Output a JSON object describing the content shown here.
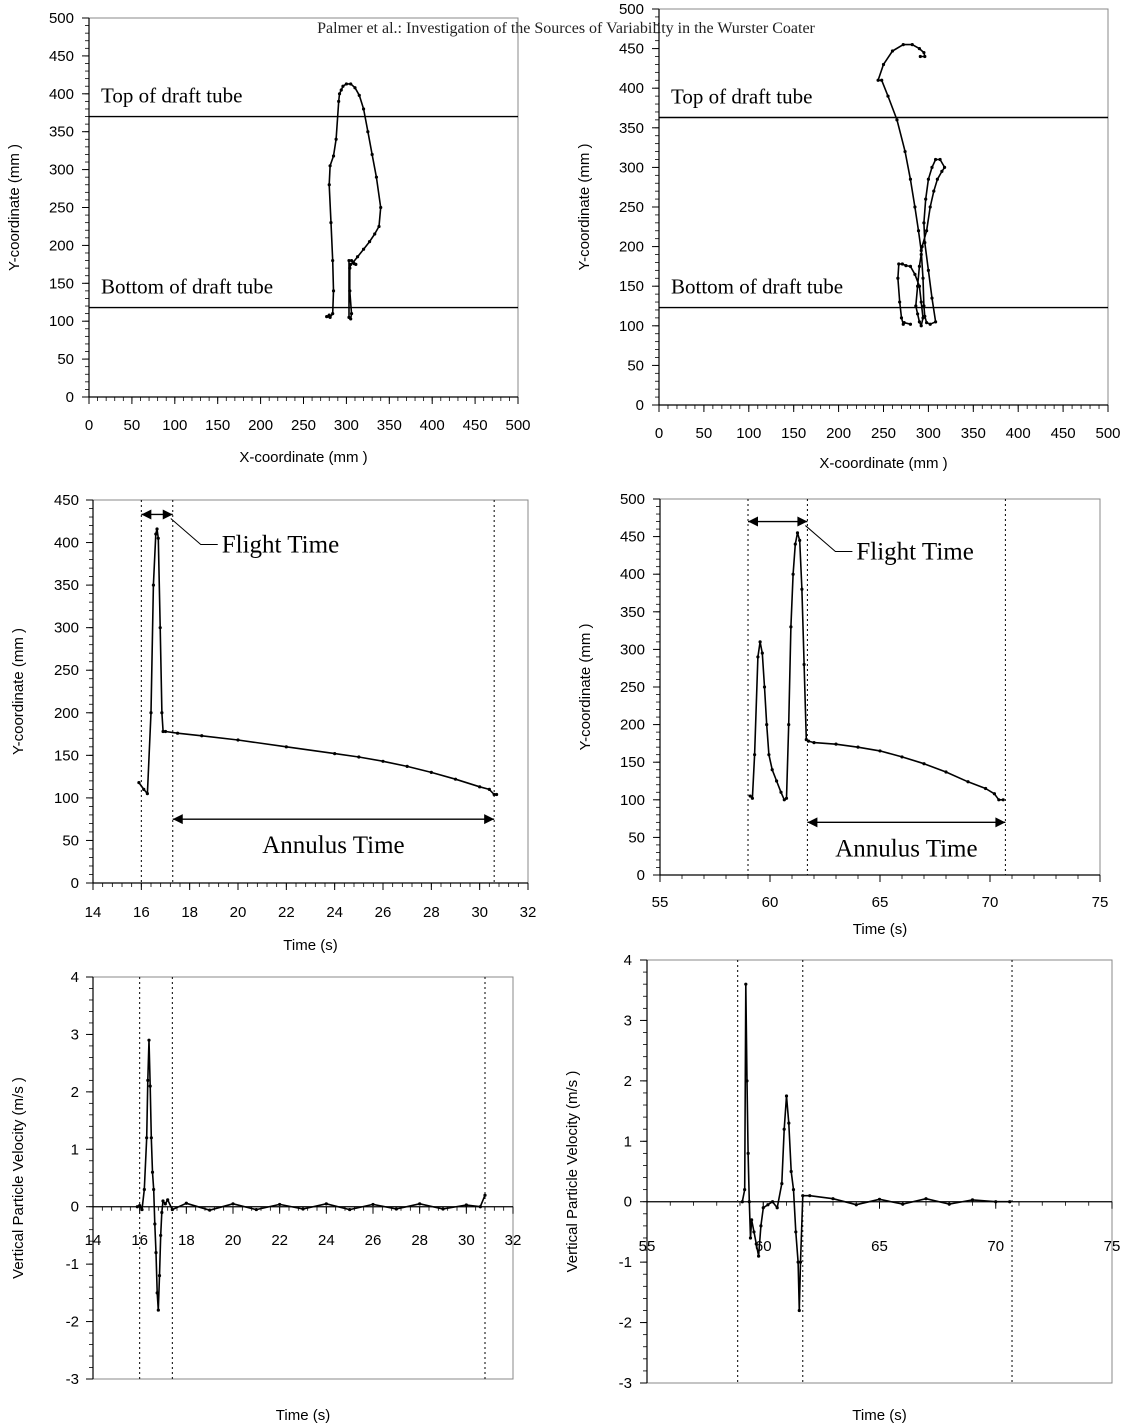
{
  "header": {
    "text": "Palmer et al.: Investigation of the Sources of Variability in the Wurster Coater"
  },
  "chart_data": [
    {
      "id": "trajectory-left",
      "type": "line",
      "xlabel": "X-coordinate (mm )",
      "ylabel": "Y-coordinate (mm )",
      "xlim": [
        0,
        500
      ],
      "ylim": [
        0,
        500
      ],
      "xticks": [
        0,
        50,
        100,
        150,
        200,
        250,
        300,
        350,
        400,
        450,
        500
      ],
      "yticks": [
        0,
        50,
        100,
        150,
        200,
        250,
        300,
        350,
        400,
        450,
        500
      ],
      "grid": false,
      "reference_lines": [
        {
          "label": "Top of draft tube",
          "y": 370
        },
        {
          "label": "Bottom of draft tube",
          "y": 118
        }
      ],
      "series": [
        {
          "x": [
            280,
            277,
            281,
            284,
            285,
            284,
            282,
            280,
            281,
            285,
            288,
            291,
            292,
            294,
            296,
            300,
            305,
            310,
            315,
            320,
            325,
            330,
            335,
            340,
            338,
            333,
            327,
            320,
            313,
            308,
            305,
            304,
            304,
            306,
            305,
            303,
            303,
            306,
            309,
            311
          ],
          "y": [
            108,
            106,
            105,
            110,
            140,
            180,
            230,
            280,
            305,
            318,
            340,
            390,
            400,
            405,
            410,
            413,
            413,
            408,
            398,
            380,
            350,
            320,
            290,
            250,
            225,
            215,
            205,
            195,
            185,
            178,
            175,
            170,
            140,
            110,
            103,
            105,
            180,
            180,
            176,
            175
          ]
        }
      ]
    },
    {
      "id": "trajectory-right",
      "type": "line",
      "xlabel": "X-coordinate (mm )",
      "ylabel": "Y-coordinate (mm )",
      "xlim": [
        0,
        500
      ],
      "ylim": [
        0,
        500
      ],
      "xticks": [
        0,
        50,
        100,
        150,
        200,
        250,
        300,
        350,
        400,
        450,
        500
      ],
      "yticks": [
        0,
        50,
        100,
        150,
        200,
        250,
        300,
        350,
        400,
        450,
        500
      ],
      "grid": false,
      "reference_lines": [
        {
          "label": "Top of draft tube",
          "y": 363
        },
        {
          "label": "Bottom of draft tube",
          "y": 123
        }
      ],
      "series": [
        {
          "x": [
            280,
            273,
            272,
            270,
            268,
            266,
            267,
            271,
            275,
            280,
            285,
            290,
            292,
            294,
            292,
            290,
            288,
            286,
            288,
            290,
            292,
            293,
            298,
            302,
            306,
            310,
            315,
            318,
            313,
            308,
            304,
            300,
            297,
            295,
            296,
            300,
            304,
            308,
            302,
            298,
            296,
            295,
            294,
            292,
            289,
            285,
            280,
            274,
            265,
            255,
            248,
            244,
            250,
            260,
            272,
            282,
            290,
            295,
            296,
            291
          ],
          "y": [
            102,
            104,
            102,
            110,
            130,
            160,
            178,
            178,
            176,
            175,
            165,
            150,
            130,
            110,
            100,
            105,
            115,
            125,
            150,
            175,
            190,
            200,
            220,
            250,
            270,
            285,
            295,
            300,
            310,
            310,
            300,
            285,
            260,
            230,
            205,
            170,
            135,
            105,
            102,
            104,
            112,
            125,
            160,
            195,
            220,
            250,
            285,
            320,
            360,
            390,
            410,
            410,
            430,
            447,
            455,
            455,
            450,
            445,
            440,
            440
          ]
        }
      ]
    },
    {
      "id": "ytime-left",
      "type": "line",
      "xlabel": "Time (s)",
      "ylabel": "Y-coordinate (mm )",
      "xlim": [
        14,
        32
      ],
      "ylim": [
        0,
        450
      ],
      "xticks": [
        14,
        16,
        18,
        20,
        22,
        24,
        26,
        28,
        30,
        32
      ],
      "yticks": [
        0,
        50,
        100,
        150,
        200,
        250,
        300,
        350,
        400,
        450
      ],
      "grid": false,
      "vlines": [
        16.0,
        17.3,
        30.6
      ],
      "annotations": [
        {
          "text": "Flight Time",
          "x_from": 16.0,
          "x_to": 17.3,
          "y": 433
        },
        {
          "text": "Annulus Time",
          "x_from": 17.3,
          "x_to": 30.6,
          "y": 75
        }
      ],
      "series": [
        {
          "x": [
            15.9,
            16.1,
            16.25,
            16.4,
            16.5,
            16.6,
            16.65,
            16.7,
            16.78,
            16.85,
            16.9,
            17.0,
            17.5,
            18.5,
            20,
            22,
            24,
            25,
            26,
            27,
            28,
            29,
            30,
            30.4,
            30.6,
            30.7
          ],
          "y": [
            118,
            110,
            105,
            200,
            350,
            410,
            416,
            405,
            300,
            200,
            178,
            178,
            176,
            173,
            168,
            160,
            152,
            148,
            143,
            137,
            130,
            122,
            113,
            110,
            104,
            104
          ]
        }
      ]
    },
    {
      "id": "ytime-right",
      "type": "line",
      "xlabel": "Time (s)",
      "ylabel": "Y-coordinate (mm )",
      "xlim": [
        55,
        75
      ],
      "ylim": [
        0,
        500
      ],
      "xticks": [
        55,
        60,
        65,
        70,
        75
      ],
      "yticks": [
        0,
        50,
        100,
        150,
        200,
        250,
        300,
        350,
        400,
        450,
        500
      ],
      "grid": false,
      "vlines": [
        59.0,
        61.7,
        70.7
      ],
      "annotations": [
        {
          "text": "Flight Time",
          "x_from": 59.0,
          "x_to": 61.7,
          "y": 470
        },
        {
          "text": "Annulus Time",
          "x_from": 61.7,
          "x_to": 70.7,
          "y": 70
        }
      ],
      "series": [
        {
          "x": [
            59.1,
            59.2,
            59.3,
            59.45,
            59.55,
            59.65,
            59.75,
            59.85,
            59.95,
            60.1,
            60.3,
            60.5,
            60.65,
            60.75,
            60.85,
            60.95,
            61.05,
            61.15,
            61.25,
            61.35,
            61.45,
            61.55,
            61.65,
            61.75,
            62,
            63,
            64,
            65,
            66,
            67,
            68,
            69,
            69.8,
            70.2,
            70.4,
            70.6
          ],
          "y": [
            105,
            102,
            160,
            290,
            310,
            295,
            250,
            200,
            160,
            140,
            125,
            110,
            100,
            102,
            200,
            330,
            400,
            440,
            455,
            445,
            380,
            280,
            180,
            178,
            176,
            174,
            170,
            165,
            157,
            148,
            137,
            124,
            115,
            108,
            100,
            100
          ]
        }
      ]
    },
    {
      "id": "velocity-left",
      "type": "line",
      "xlabel": "Time (s)",
      "ylabel": "Vertical Particle Velocity (m/s )",
      "xlim": [
        14,
        32
      ],
      "ylim": [
        -3,
        4
      ],
      "xticks": [
        14,
        16,
        18,
        20,
        22,
        24,
        26,
        28,
        30,
        32
      ],
      "yticks": [
        -3,
        -2,
        -1,
        0,
        1,
        2,
        3,
        4
      ],
      "grid": false,
      "vlines": [
        16.0,
        17.4,
        30.8
      ],
      "series": [
        {
          "x": [
            15.9,
            16.0,
            16.1,
            16.2,
            16.3,
            16.35,
            16.4,
            16.45,
            16.5,
            16.55,
            16.6,
            16.65,
            16.7,
            16.75,
            16.8,
            16.85,
            16.9,
            16.95,
            17.0,
            17.1,
            17.2,
            17.4,
            18,
            19,
            20,
            21,
            22,
            23,
            24,
            25,
            26,
            27,
            28,
            29,
            30,
            30.6,
            30.8
          ],
          "y": [
            0.0,
            0.02,
            -0.05,
            0.3,
            1.2,
            2.2,
            2.9,
            2.1,
            1.2,
            0.6,
            0.3,
            -0.3,
            -0.8,
            -1.5,
            -1.8,
            -1.2,
            -0.5,
            -0.1,
            0.1,
            0.05,
            0.12,
            -0.05,
            0.06,
            -0.06,
            0.05,
            -0.05,
            0.04,
            -0.04,
            0.05,
            -0.05,
            0.04,
            -0.04,
            0.05,
            -0.04,
            0.03,
            0.0,
            0.2
          ]
        }
      ]
    },
    {
      "id": "velocity-right",
      "type": "line",
      "xlabel": "Time (s)",
      "ylabel": "Vertical Particle Velocity (m/s )",
      "xlim": [
        55,
        75
      ],
      "ylim": [
        -3,
        4
      ],
      "xticks": [
        55,
        60,
        65,
        70,
        75
      ],
      "yticks": [
        -3,
        -2,
        -1,
        0,
        1,
        2,
        3,
        4
      ],
      "grid": false,
      "vlines": [
        58.9,
        61.7,
        70.7
      ],
      "series": [
        {
          "x": [
            59.1,
            59.2,
            59.25,
            59.3,
            59.35,
            59.4,
            59.45,
            59.5,
            59.6,
            59.7,
            59.8,
            59.9,
            60.0,
            60.2,
            60.4,
            60.6,
            60.8,
            60.9,
            61.0,
            61.1,
            61.2,
            61.3,
            61.4,
            61.5,
            61.55,
            61.6,
            61.7,
            62,
            63,
            64,
            65,
            66,
            67,
            68,
            69,
            70,
            70.6
          ],
          "y": [
            0.0,
            0.2,
            3.6,
            2.0,
            0.8,
            0.0,
            -0.6,
            -0.3,
            -0.5,
            -0.7,
            -0.9,
            -0.4,
            -0.1,
            -0.05,
            0.0,
            -0.1,
            0.3,
            1.2,
            1.75,
            1.3,
            0.5,
            0.2,
            -0.5,
            -1.0,
            -1.8,
            -1.0,
            0.1,
            0.1,
            0.05,
            -0.05,
            0.04,
            -0.04,
            0.05,
            -0.04,
            0.03,
            0.0,
            0.0
          ]
        }
      ]
    }
  ]
}
